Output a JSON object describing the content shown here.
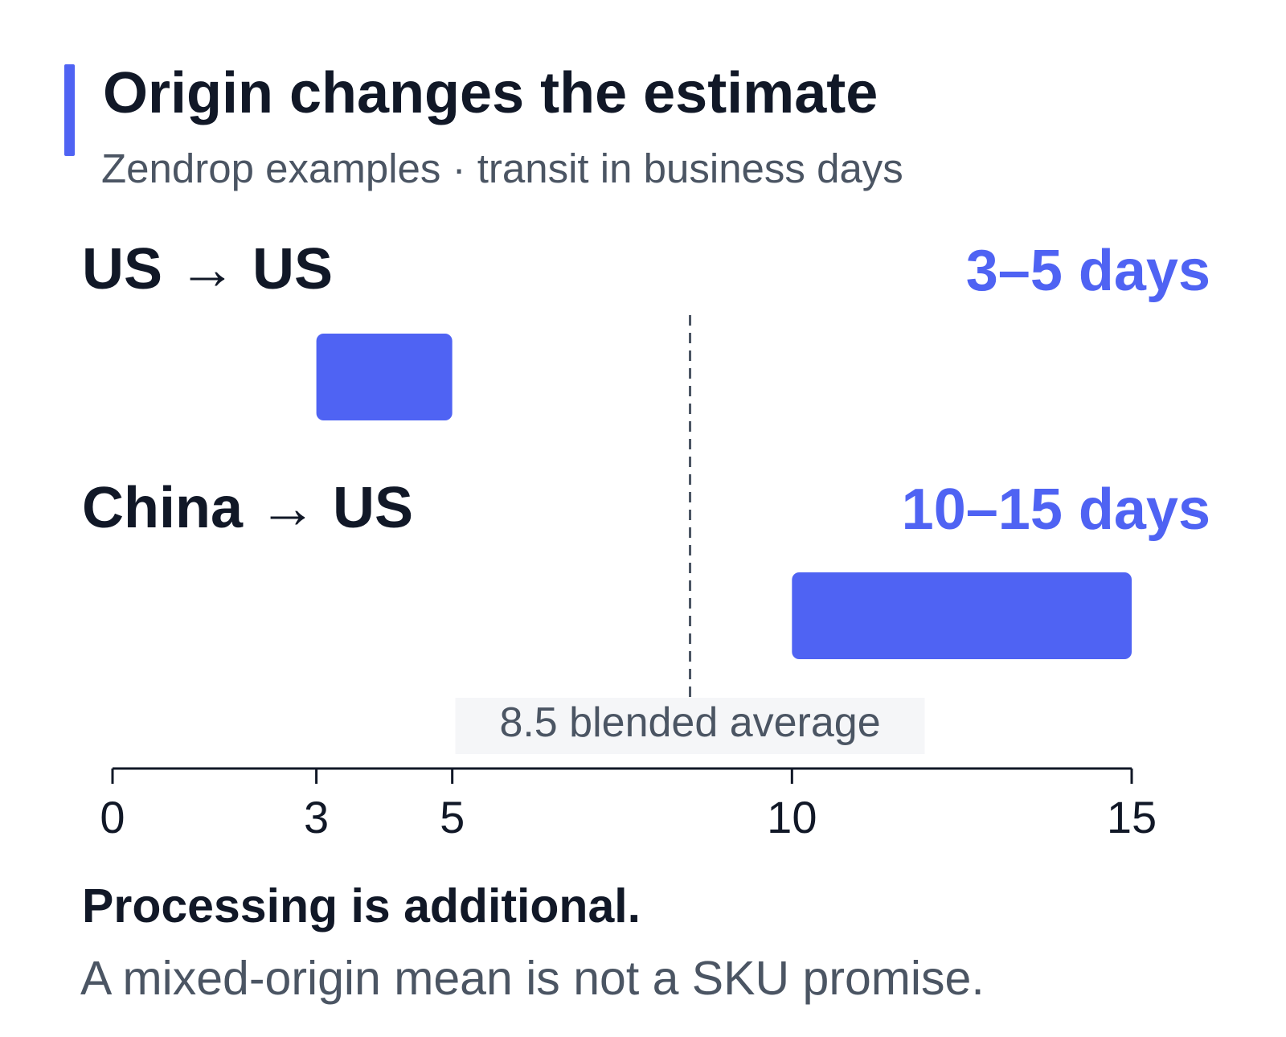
{
  "colors": {
    "accent": "#4f63f3",
    "text": "#111827",
    "muted": "#4b5563",
    "label_bg": "#f5f6f8"
  },
  "chart_data": {
    "type": "bar",
    "orientation": "horizontal-range",
    "title": "Origin changes the estimate",
    "subtitle": "Zendrop examples · transit in business days",
    "series": [
      {
        "name": "US → US",
        "start": 3,
        "end": 5,
        "range_label": "3–5 days"
      },
      {
        "name": "China → US",
        "start": 10,
        "end": 15,
        "range_label": "10–15 days"
      }
    ],
    "reference_line": {
      "value": 8.5,
      "label": "8.5 blended average",
      "style": "dashed"
    },
    "x_axis": {
      "ticks": [
        0,
        3,
        5,
        10,
        15
      ],
      "range": [
        0,
        15
      ]
    },
    "grid": false,
    "legend": "none"
  },
  "footer": {
    "headline": "Processing is additional.",
    "note": "A mixed-origin mean is not a SKU promise."
  }
}
